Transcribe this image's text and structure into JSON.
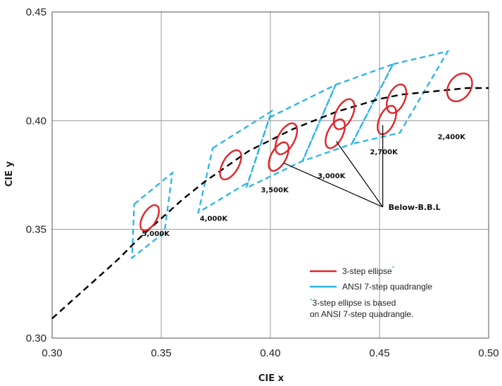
{
  "chart_data": {
    "type": "scatter",
    "xlabel": "CIE x",
    "ylabel": "CIE y",
    "xlim": [
      0.3,
      0.5
    ],
    "ylim": [
      0.3,
      0.45
    ],
    "x_ticks": [
      "0.30",
      "0.35",
      "0.40",
      "0.45",
      "0.50"
    ],
    "y_ticks": [
      "0.30",
      "0.35",
      "0.40",
      "0.45"
    ],
    "grid": true,
    "colors": {
      "ellipse": "#e0252b",
      "quadrangle": "#29b5e6",
      "locus": "#000000",
      "grid": "#999999"
    },
    "legend": {
      "placement": "bottom-right",
      "entries": [
        {
          "label": "3-step ellipse",
          "mark": "*",
          "color": "#e0252b"
        },
        {
          "label": "ANSI 7-step quadrangle",
          "color": "#29b5e6"
        }
      ],
      "note_mark": "*",
      "note_lines": [
        "3-step ellipse is based",
        "on ANSI 7-step quadrangle."
      ]
    },
    "blackbody_locus": {
      "x": [
        0.3,
        0.31,
        0.32,
        0.33,
        0.34,
        0.35,
        0.36,
        0.37,
        0.38,
        0.39,
        0.4,
        0.41,
        0.42,
        0.43,
        0.44,
        0.45,
        0.46,
        0.47,
        0.48,
        0.49,
        0.5
      ],
      "y": [
        0.309,
        0.318,
        0.327,
        0.336,
        0.346,
        0.355,
        0.364,
        0.372,
        0.379,
        0.386,
        0.391,
        0.396,
        0.4,
        0.404,
        0.407,
        0.41,
        0.412,
        0.413,
        0.414,
        0.415,
        0.415
      ]
    },
    "quadrangles": [
      {
        "cct": "5,000K",
        "points": [
          [
            0.3376,
            0.3616
          ],
          [
            0.3551,
            0.376
          ],
          [
            0.3515,
            0.3487
          ],
          [
            0.3366,
            0.3369
          ]
        ]
      },
      {
        "cct": "4,000K",
        "points": [
          [
            0.3736,
            0.3874
          ],
          [
            0.4006,
            0.4044
          ],
          [
            0.3898,
            0.3716
          ],
          [
            0.367,
            0.3578
          ]
        ]
      },
      {
        "cct": "3,500K",
        "points": [
          [
            0.3996,
            0.4015
          ],
          [
            0.4299,
            0.4165
          ],
          [
            0.4148,
            0.3815
          ],
          [
            0.3889,
            0.369
          ]
        ]
      },
      {
        "cct": "3,000K",
        "points": [
          [
            0.4299,
            0.4165
          ],
          [
            0.4562,
            0.426
          ],
          [
            0.4373,
            0.3893
          ],
          [
            0.4147,
            0.3814
          ]
        ]
      },
      {
        "cct": "2,700K",
        "points": [
          [
            0.4562,
            0.426
          ],
          [
            0.4813,
            0.4319
          ],
          [
            0.4593,
            0.3944
          ],
          [
            0.4373,
            0.3893
          ]
        ]
      }
    ],
    "ellipses": [
      {
        "cct": "5,000K",
        "center": [
          0.3447,
          0.3553
        ],
        "a": 0.0032,
        "b": 0.0065,
        "rotation_deg": 30
      },
      {
        "cct": "4,000K",
        "center": [
          0.3818,
          0.3797
        ],
        "a": 0.0036,
        "b": 0.0075,
        "rotation_deg": 30
      },
      {
        "cct": "3,500K",
        "center": [
          0.4073,
          0.3917
        ],
        "a": 0.0038,
        "b": 0.0078,
        "rotation_deg": 28
      },
      {
        "cct": "3,500K Below-B.B.L",
        "center": [
          0.4038,
          0.3835
        ],
        "a": 0.0035,
        "b": 0.0072,
        "rotation_deg": 28
      },
      {
        "cct": "3,000K",
        "center": [
          0.4338,
          0.403
        ],
        "a": 0.0038,
        "b": 0.0075,
        "rotation_deg": 26
      },
      {
        "cct": "3,000K Below-B.B.L",
        "center": [
          0.4297,
          0.394
        ],
        "a": 0.0035,
        "b": 0.0072,
        "rotation_deg": 26
      },
      {
        "cct": "2,700K",
        "center": [
          0.4578,
          0.4101
        ],
        "a": 0.0038,
        "b": 0.007,
        "rotation_deg": 24
      },
      {
        "cct": "2,700K Below-B.B.L",
        "center": [
          0.4534,
          0.4003
        ],
        "a": 0.0035,
        "b": 0.007,
        "rotation_deg": 24
      },
      {
        "cct": "2,400K",
        "center": [
          0.4867,
          0.4153
        ],
        "a": 0.005,
        "b": 0.007,
        "rotation_deg": 35
      }
    ],
    "annotations": [
      {
        "text": "5,000K",
        "x": 0.3475,
        "y": 0.347
      },
      {
        "text": "4,000K",
        "x": 0.374,
        "y": 0.354
      },
      {
        "text": "3,500K",
        "x": 0.402,
        "y": 0.367
      },
      {
        "text": "3,000K",
        "x": 0.428,
        "y": 0.3735
      },
      {
        "text": "2,700K",
        "x": 0.452,
        "y": 0.3845
      },
      {
        "text": "2,400K",
        "x": 0.483,
        "y": 0.3915
      }
    ],
    "below_bbl": {
      "text": "Below-B.B.L",
      "anchor": [
        0.4515,
        0.3603
      ],
      "targets": [
        [
          0.4062,
          0.3805
        ],
        [
          0.4302,
          0.3905
        ],
        [
          0.4515,
          0.398
        ]
      ]
    }
  }
}
